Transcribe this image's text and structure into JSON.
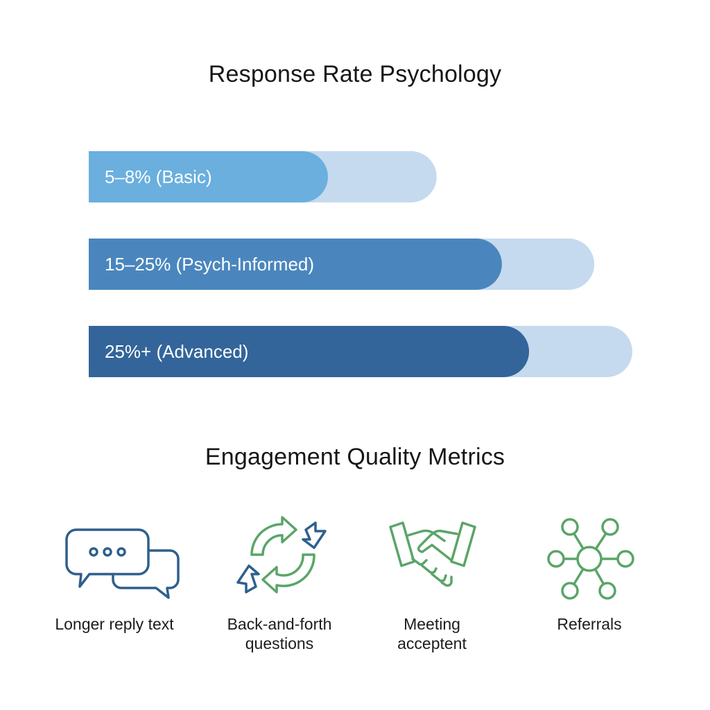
{
  "titles": {
    "top": "Response Rate Psychology",
    "bottom": "Engagement Quality Metrics"
  },
  "chart_data": {
    "type": "bar",
    "title": "Response Rate Psychology",
    "orientation": "horizontal",
    "categories": [
      "5–8% (Basic)",
      "15–25% (Psych-Informed)",
      "25%+ (Advanced)"
    ],
    "series": [
      {
        "name": "value",
        "values": [
          0.44,
          0.76,
          0.81
        ]
      },
      {
        "name": "range",
        "values": [
          0.64,
          0.93,
          1.0
        ]
      }
    ],
    "colors": {
      "value": [
        "#6aafde",
        "#4a86bd",
        "#33659a"
      ],
      "range": "#c5daee"
    },
    "xlim": [
      0,
      1
    ],
    "xlabel": "",
    "ylabel": "",
    "grid": false
  },
  "metrics": [
    {
      "label_lines": [
        "Longer reply text"
      ],
      "icon": "chat-bubbles-icon"
    },
    {
      "label_lines": [
        "Back-and-forth",
        "questions"
      ],
      "icon": "cycle-arrows-icon"
    },
    {
      "label_lines": [
        "Meeting",
        "acceptent"
      ],
      "icon": "handshake-icon"
    },
    {
      "label_lines": [
        "Referrals"
      ],
      "icon": "network-hub-icon"
    }
  ],
  "icon_colors": {
    "blue": "#2e5f8d",
    "green": "#5aa567"
  }
}
